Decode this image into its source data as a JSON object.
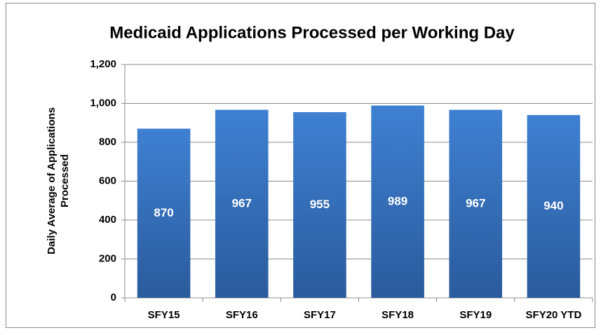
{
  "chart_data": {
    "type": "bar",
    "title": "Medicaid Applications Processed per Working Day",
    "y_label": "Daily Average of Applications Processed",
    "categories": [
      "SFY15",
      "SFY16",
      "SFY17",
      "SFY18",
      "SFY19",
      "SFY20 YTD"
    ],
    "values": [
      870,
      967,
      955,
      989,
      967,
      940
    ],
    "color": "#3a78c8",
    "ylim": [
      0,
      1200
    ],
    "yticks": [
      0,
      200,
      400,
      600,
      800,
      {
        "value": 1000,
        "label": "1,000"
      },
      {
        "value": 1200,
        "label": "1,200"
      }
    ],
    "grid": true
  }
}
